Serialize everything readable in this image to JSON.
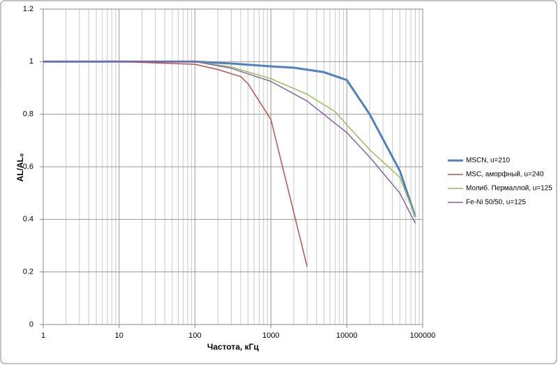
{
  "chart_data": {
    "type": "line",
    "x_label": "Частота, кГц",
    "y_label": "AL/AL₀",
    "xlim": [
      1,
      100000
    ],
    "xticks": [
      1,
      10,
      100,
      1000,
      10000,
      100000
    ],
    "x_log": true,
    "ylim": [
      0,
      1.2
    ],
    "yticks": [
      0,
      0.2,
      0.4,
      0.6,
      0.8,
      1,
      1.2
    ],
    "grid": true,
    "minor_grid": true,
    "legend": "right",
    "series": [
      {
        "name": "MSCN, u=210",
        "color": "#4f81bd",
        "width": 3,
        "x": [
          1,
          10,
          100,
          300,
          1000,
          2000,
          5000,
          10000,
          20000,
          50000,
          80000
        ],
        "values": [
          1,
          1,
          1,
          0.993,
          0.982,
          0.977,
          0.96,
          0.93,
          0.8,
          0.585,
          0.41
        ]
      },
      {
        "name": "MSC, аморфный, u=240",
        "color": "#c0504d",
        "width": 1.5,
        "x": [
          1,
          10,
          100,
          200,
          400,
          500,
          700,
          1000,
          3000
        ],
        "values": [
          1,
          1,
          0.99,
          0.97,
          0.943,
          0.916,
          0.85,
          0.78,
          0.22
        ]
      },
      {
        "name": "Молиб. Пермаллой, u=125",
        "color": "#9bbb59",
        "width": 1.5,
        "x": [
          1,
          10,
          100,
          300,
          1000,
          3000,
          7000,
          10000,
          20000,
          50000,
          80000
        ],
        "values": [
          1,
          1,
          1,
          0.98,
          0.935,
          0.876,
          0.81,
          0.76,
          0.665,
          0.56,
          0.41
        ]
      },
      {
        "name": "Fe-Ni  50/50, u=125",
        "color": "#8064a2",
        "width": 1.5,
        "x": [
          1,
          10,
          100,
          300,
          1000,
          3000,
          10000,
          20000,
          50000,
          80000
        ],
        "values": [
          1,
          1,
          1,
          0.975,
          0.925,
          0.85,
          0.73,
          0.637,
          0.5,
          0.385
        ]
      }
    ]
  }
}
